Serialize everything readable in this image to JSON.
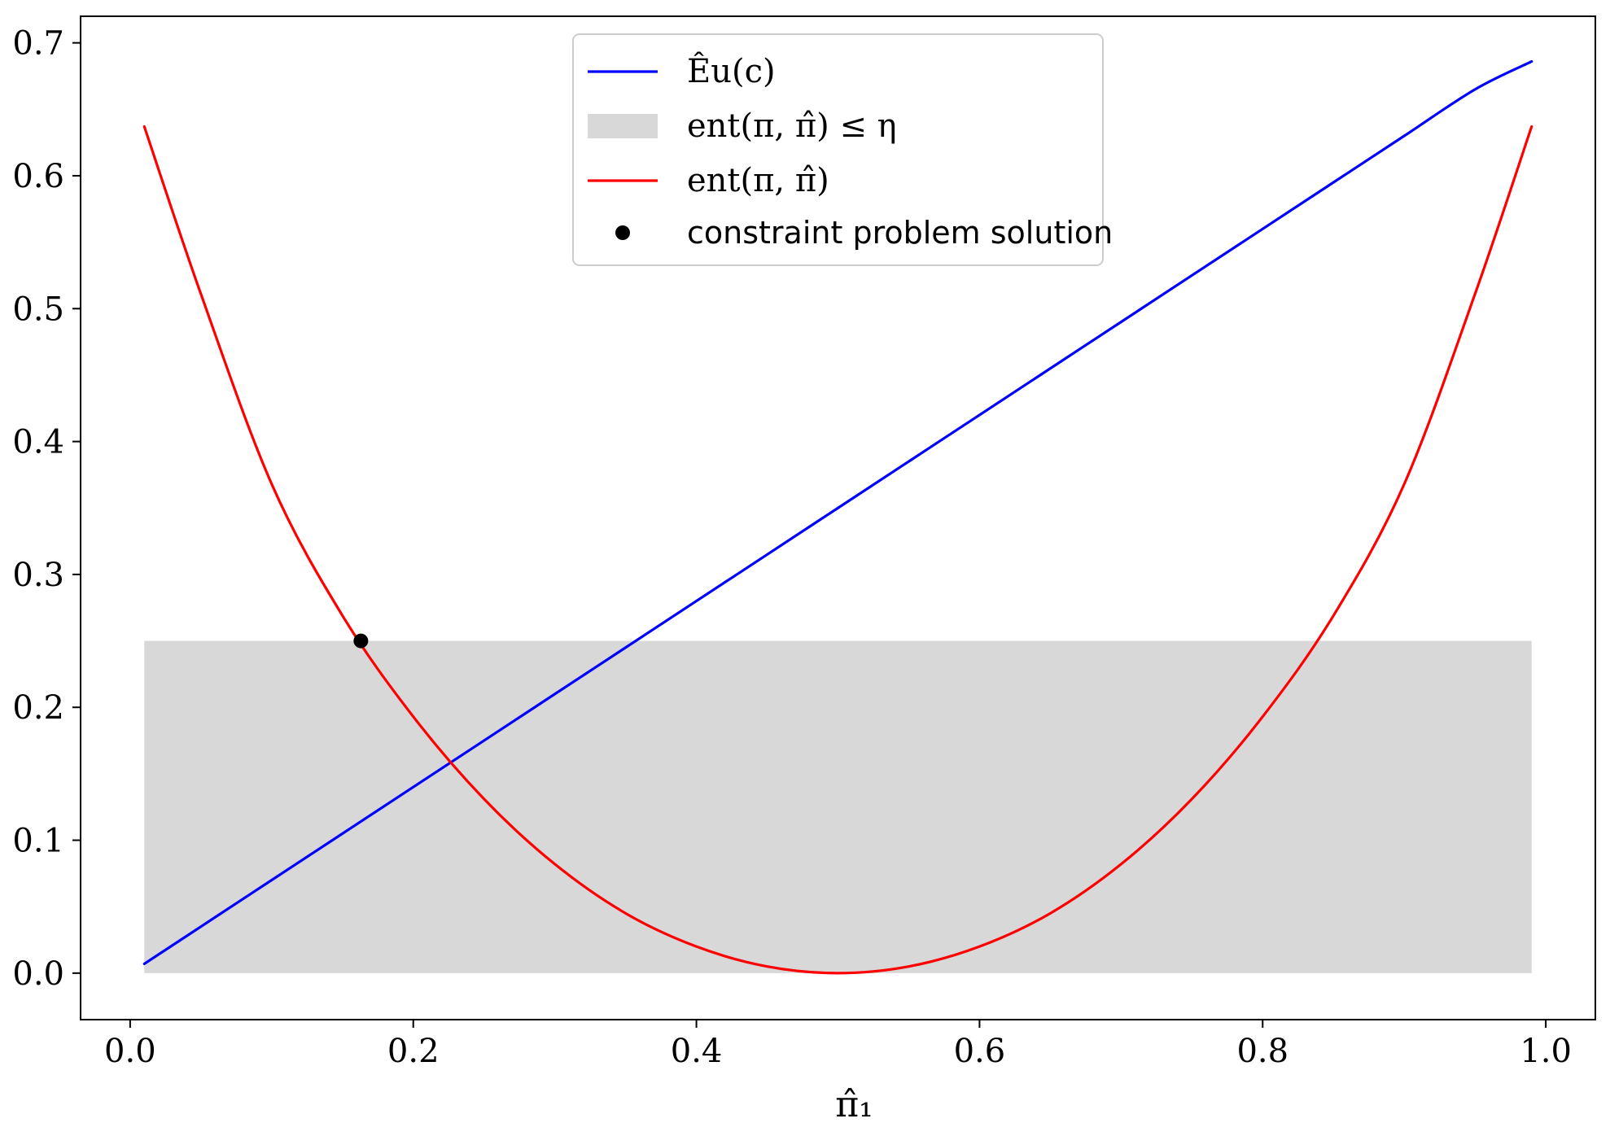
{
  "chart_data": {
    "type": "line",
    "x": [
      0.01,
      0.05,
      0.1,
      0.15,
      0.2,
      0.25,
      0.3,
      0.35,
      0.4,
      0.45,
      0.5,
      0.55,
      0.6,
      0.65,
      0.7,
      0.75,
      0.8,
      0.85,
      0.9,
      0.95,
      0.99
    ],
    "series": [
      {
        "name": "Êu(c)",
        "color": "#0000ff",
        "values": [
          0.007,
          0.035,
          0.07,
          0.105,
          0.14,
          0.175,
          0.21,
          0.245,
          0.28,
          0.315,
          0.35,
          0.385,
          0.42,
          0.455,
          0.49,
          0.525,
          0.56,
          0.595,
          0.63,
          0.665,
          0.686
        ]
      },
      {
        "name": "ent(π, π̂)",
        "color": "#ff0000",
        "values": [
          0.637,
          0.511,
          0.368,
          0.269,
          0.193,
          0.131,
          0.082,
          0.045,
          0.02,
          0.005,
          0.0,
          0.005,
          0.02,
          0.045,
          0.082,
          0.131,
          0.193,
          0.269,
          0.368,
          0.511,
          0.637
        ]
      }
    ],
    "band": {
      "name": "ent(π, π̂) ≤ η",
      "color": "#d8d8d8",
      "x_range": [
        0.01,
        0.99
      ],
      "y_range": [
        0.0,
        0.25
      ]
    },
    "points": [
      {
        "name": "constraint problem solution",
        "color": "#000000",
        "x": 0.163,
        "y": 0.25
      }
    ],
    "xlabel": "π̂₁",
    "ylabel": "",
    "title": "",
    "xlim": [
      -0.035,
      1.035
    ],
    "ylim": [
      -0.035,
      0.72
    ],
    "xticks": [
      0.0,
      0.2,
      0.4,
      0.6,
      0.8,
      1.0
    ],
    "xtick_labels": [
      "0.0",
      "0.2",
      "0.4",
      "0.6",
      "0.8",
      "1.0"
    ],
    "yticks": [
      0.0,
      0.1,
      0.2,
      0.3,
      0.4,
      0.5,
      0.6,
      0.7
    ],
    "ytick_labels": [
      "0.0",
      "0.1",
      "0.2",
      "0.3",
      "0.4",
      "0.5",
      "0.6",
      "0.7"
    ],
    "grid": false,
    "legend_position": "upper-center",
    "legend": [
      {
        "kind": "line",
        "label": "Êu(c)",
        "color": "#0000ff"
      },
      {
        "kind": "patch",
        "label": "ent(π, π̂) ≤ η",
        "color": "#d8d8d8"
      },
      {
        "kind": "line",
        "label": "ent(π, π̂)",
        "color": "#ff0000"
      },
      {
        "kind": "marker",
        "label": "constraint problem solution",
        "color": "#000000"
      }
    ]
  }
}
